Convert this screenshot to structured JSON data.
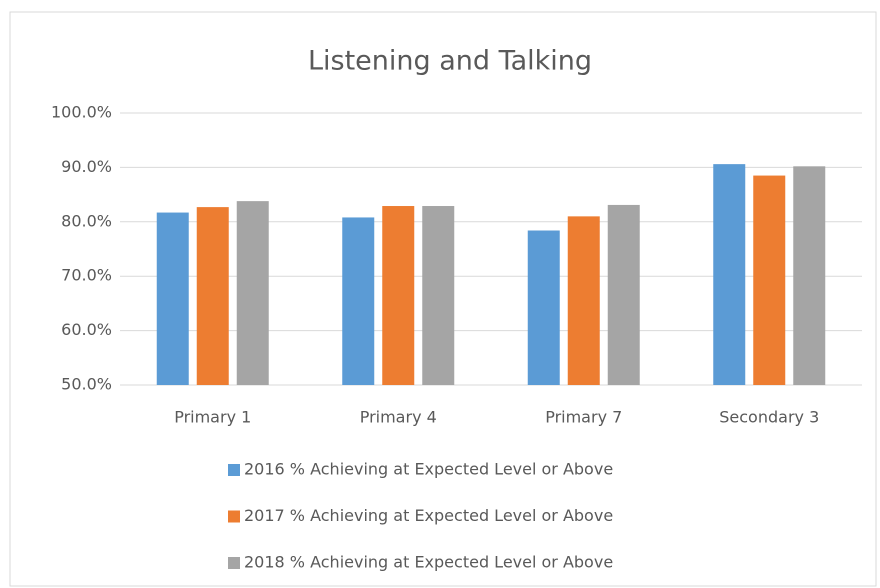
{
  "chart_data": {
    "type": "bar",
    "title": "Listening and Talking",
    "categories": [
      "Primary 1",
      "Primary 4",
      "Primary 7",
      "Secondary 3"
    ],
    "series": [
      {
        "name": "2016 % Achieving at Expected Level or Above",
        "color": "#5b9bd5",
        "values": [
          81.7,
          80.8,
          78.4,
          90.6
        ]
      },
      {
        "name": "2017 % Achieving at Expected Level or Above",
        "color": "#ed7d31",
        "values": [
          82.7,
          82.9,
          81.0,
          88.5
        ]
      },
      {
        "name": "2018 % Achieving at Expected Level or Above",
        "color": "#a5a5a5",
        "values": [
          83.8,
          82.9,
          83.1,
          90.2
        ]
      }
    ],
    "ylim": [
      50,
      100
    ],
    "yticks": [
      {
        "value": 50,
        "label": "50.0%"
      },
      {
        "value": 60,
        "label": "60.0%"
      },
      {
        "value": 70,
        "label": "70.0%"
      },
      {
        "value": 80,
        "label": "80.0%"
      },
      {
        "value": 90,
        "label": "90.0%"
      },
      {
        "value": 100,
        "label": "100.0%"
      }
    ],
    "grid": true,
    "legend": "bottom"
  }
}
